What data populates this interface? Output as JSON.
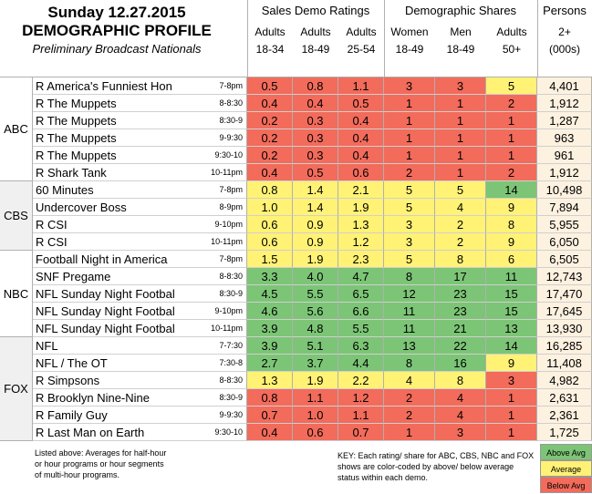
{
  "header": {
    "date": "Sunday 12.27.2015",
    "title": "DEMOGRAPHIC PROFILE",
    "subtitle": "Preliminary Broadcast Nationals"
  },
  "groups": {
    "sales": "Sales Demo Ratings",
    "demo": "Demographic Shares",
    "persons": "Persons"
  },
  "columns": [
    {
      "l1": "Adults",
      "l2": "18-34"
    },
    {
      "l1": "Adults",
      "l2": "18-49"
    },
    {
      "l1": "Adults",
      "l2": "25-54"
    },
    {
      "l1": "Women",
      "l2": "18-49"
    },
    {
      "l1": "Men",
      "l2": "18-49"
    },
    {
      "l1": "Adults",
      "l2": "50+"
    },
    {
      "l1": "2+",
      "l2": "(000s)"
    }
  ],
  "colors": {
    "above": "#7cc576",
    "avg": "#fff275",
    "below": "#f26b5b",
    "persons": "#fdf1e0"
  },
  "networks": [
    {
      "name": "ABC",
      "rows": 6
    },
    {
      "name": "CBS",
      "rows": 4
    },
    {
      "name": "NBC",
      "rows": 5
    },
    {
      "name": "FOX",
      "rows": 6
    }
  ],
  "rows": [
    {
      "show": "R America's Funniest Hon",
      "time": "7-8pm",
      "vals": [
        "0.5",
        "0.8",
        "1.1",
        "3",
        "3",
        "5",
        "4,401"
      ],
      "st": [
        "B",
        "B",
        "B",
        "B",
        "B",
        "Y"
      ]
    },
    {
      "show": "R The Muppets",
      "time": "8-8:30",
      "vals": [
        "0.4",
        "0.4",
        "0.5",
        "1",
        "1",
        "2",
        "1,912"
      ],
      "st": [
        "B",
        "B",
        "B",
        "B",
        "B",
        "B"
      ]
    },
    {
      "show": "R The Muppets",
      "time": "8:30-9",
      "vals": [
        "0.2",
        "0.3",
        "0.4",
        "1",
        "1",
        "1",
        "1,287"
      ],
      "st": [
        "B",
        "B",
        "B",
        "B",
        "B",
        "B"
      ]
    },
    {
      "show": "R The Muppets",
      "time": "9-9:30",
      "vals": [
        "0.2",
        "0.3",
        "0.4",
        "1",
        "1",
        "1",
        "963"
      ],
      "st": [
        "B",
        "B",
        "B",
        "B",
        "B",
        "B"
      ]
    },
    {
      "show": "R The Muppets",
      "time": "9:30-10",
      "vals": [
        "0.2",
        "0.3",
        "0.4",
        "1",
        "1",
        "1",
        "961"
      ],
      "st": [
        "B",
        "B",
        "B",
        "B",
        "B",
        "B"
      ]
    },
    {
      "show": "R Shark Tank",
      "time": "10-11pm",
      "vals": [
        "0.4",
        "0.5",
        "0.6",
        "2",
        "1",
        "2",
        "1,912"
      ],
      "st": [
        "B",
        "B",
        "B",
        "B",
        "B",
        "B"
      ]
    },
    {
      "show": "60 Minutes",
      "time": "7-8pm",
      "vals": [
        "0.8",
        "1.4",
        "2.1",
        "5",
        "5",
        "14",
        "10,498"
      ],
      "st": [
        "Y",
        "Y",
        "Y",
        "Y",
        "Y",
        "G"
      ]
    },
    {
      "show": "Undercover Boss",
      "time": "8-9pm",
      "vals": [
        "1.0",
        "1.4",
        "1.9",
        "5",
        "4",
        "9",
        "7,894"
      ],
      "st": [
        "Y",
        "Y",
        "Y",
        "Y",
        "Y",
        "Y"
      ]
    },
    {
      "show": "R CSI",
      "time": "9-10pm",
      "vals": [
        "0.6",
        "0.9",
        "1.3",
        "3",
        "2",
        "8",
        "5,955"
      ],
      "st": [
        "Y",
        "Y",
        "Y",
        "Y",
        "Y",
        "Y"
      ]
    },
    {
      "show": "R CSI",
      "time": "10-11pm",
      "vals": [
        "0.6",
        "0.9",
        "1.2",
        "3",
        "2",
        "9",
        "6,050"
      ],
      "st": [
        "Y",
        "Y",
        "Y",
        "Y",
        "Y",
        "Y"
      ]
    },
    {
      "show": "Football Night in America",
      "time": "7-8pm",
      "vals": [
        "1.5",
        "1.9",
        "2.3",
        "5",
        "8",
        "6",
        "6,505"
      ],
      "st": [
        "Y",
        "Y",
        "Y",
        "Y",
        "Y",
        "Y"
      ]
    },
    {
      "show": "SNF Pregame",
      "time": "8-8:30",
      "vals": [
        "3.3",
        "4.0",
        "4.7",
        "8",
        "17",
        "11",
        "12,743"
      ],
      "st": [
        "G",
        "G",
        "G",
        "G",
        "G",
        "G"
      ]
    },
    {
      "show": "NFL Sunday Night Footbal",
      "time": "8:30-9",
      "vals": [
        "4.5",
        "5.5",
        "6.5",
        "12",
        "23",
        "15",
        "17,470"
      ],
      "st": [
        "G",
        "G",
        "G",
        "G",
        "G",
        "G"
      ]
    },
    {
      "show": "NFL Sunday Night Footbal",
      "time": "9-10pm",
      "vals": [
        "4.6",
        "5.6",
        "6.6",
        "11",
        "23",
        "15",
        "17,645"
      ],
      "st": [
        "G",
        "G",
        "G",
        "G",
        "G",
        "G"
      ]
    },
    {
      "show": "NFL Sunday Night Footbal",
      "time": "10-11pm",
      "vals": [
        "3.9",
        "4.8",
        "5.5",
        "11",
        "21",
        "13",
        "13,930"
      ],
      "st": [
        "G",
        "G",
        "G",
        "G",
        "G",
        "G"
      ]
    },
    {
      "show": "NFL",
      "time": "7-7:30",
      "vals": [
        "3.9",
        "5.1",
        "6.3",
        "13",
        "22",
        "14",
        "16,285"
      ],
      "st": [
        "G",
        "G",
        "G",
        "G",
        "G",
        "G"
      ]
    },
    {
      "show": "NFL / The OT",
      "time": "7:30-8",
      "vals": [
        "2.7",
        "3.7",
        "4.4",
        "8",
        "16",
        "9",
        "11,408"
      ],
      "st": [
        "G",
        "G",
        "G",
        "G",
        "G",
        "Y"
      ]
    },
    {
      "show": "R Simpsons",
      "time": "8-8:30",
      "vals": [
        "1.3",
        "1.9",
        "2.2",
        "4",
        "8",
        "3",
        "4,982"
      ],
      "st": [
        "Y",
        "Y",
        "Y",
        "Y",
        "Y",
        "B"
      ]
    },
    {
      "show": "R Brooklyn Nine-Nine",
      "time": "8:30-9",
      "vals": [
        "0.8",
        "1.1",
        "1.2",
        "2",
        "4",
        "1",
        "2,631"
      ],
      "st": [
        "B",
        "B",
        "B",
        "B",
        "B",
        "B"
      ]
    },
    {
      "show": "R Family Guy",
      "time": "9-9:30",
      "vals": [
        "0.7",
        "1.0",
        "1.1",
        "2",
        "4",
        "1",
        "2,361"
      ],
      "st": [
        "B",
        "B",
        "B",
        "B",
        "B",
        "B"
      ]
    },
    {
      "show": "R Last Man on Earth",
      "time": "9:30-10",
      "vals": [
        "0.4",
        "0.6",
        "0.7",
        "1",
        "3",
        "1",
        "1,725"
      ],
      "st": [
        "B",
        "B",
        "B",
        "B",
        "B",
        "B"
      ]
    }
  ],
  "footer": {
    "note_left": "Listed above: Averages for half-hour or hour programs or hour segments of multi-hour programs.",
    "key": "KEY: Each rating/ share for ABC, CBS, NBC and FOX shows are color-coded by above/ below average status within each demo.",
    "legend": [
      "Above Avg",
      "Average",
      "Below Avg"
    ]
  }
}
